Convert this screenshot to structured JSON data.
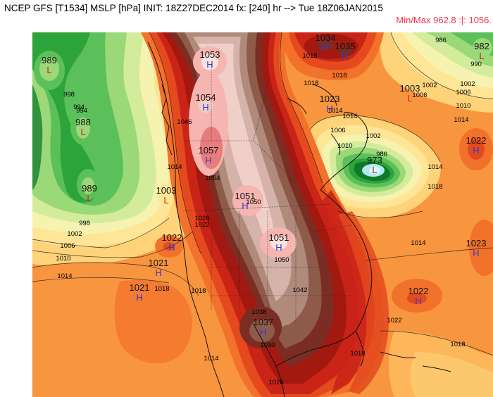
{
  "header": {
    "title": "NCEP GFS [T1534] MSLP [hPa] INIT: 18Z27DEC2014 fx: [240] hr --> Tue 18Z06JAN2015",
    "minmax": "Min/Max 962.8 :|: 1056."
  },
  "colors": {
    "background": "#ffffff",
    "minmax_text": "#e8364a",
    "high_letter": "#2a3cd6",
    "low_letter": "#d42020",
    "lows": [
      "#0e7a28",
      "#2ca43a",
      "#5cc05a",
      "#9bd878",
      "#d3ec9c",
      "#f6f2b0",
      "#ffe596"
    ],
    "mid": [
      "#fed37a",
      "#fdb65a",
      "#f8953f"
    ],
    "highs": [
      "#f2712b",
      "#e44a1e",
      "#c92417",
      "#a3180f",
      "#7c2d23",
      "#8e5b4b",
      "#b08a7b",
      "#d5b3ab",
      "#f0cfc8",
      "#f6b5b1",
      "#e87c7c"
    ],
    "deep_low": [
      "#b4e8f0",
      "#d8f6fa"
    ]
  },
  "pressure_centers": [
    {
      "type": "L",
      "value": "989",
      "id": "pac-north-low"
    },
    {
      "type": "L",
      "value": "988",
      "id": "pac-low-1"
    },
    {
      "type": "L",
      "value": "989",
      "id": "pac-low-2"
    },
    {
      "type": "L",
      "value": "1003",
      "id": "coast-low"
    },
    {
      "type": "H",
      "value": "1053",
      "id": "yukon-high"
    },
    {
      "type": "H",
      "value": "1054",
      "id": "bc-high"
    },
    {
      "type": "H",
      "value": "1057",
      "id": "alberta-high"
    },
    {
      "type": "H",
      "value": "1051",
      "id": "plains-high-1"
    },
    {
      "type": "H",
      "value": "1051",
      "id": "plains-high-2"
    },
    {
      "type": "H",
      "value": "1037",
      "id": "texas-high"
    },
    {
      "type": "H",
      "value": "1022",
      "id": "nevada-high"
    },
    {
      "type": "H",
      "value": "1021",
      "id": "calif-high"
    },
    {
      "type": "H",
      "value": "1021",
      "id": "pacific-sub-high"
    },
    {
      "type": "H",
      "value": "1034",
      "id": "arctic-high-1"
    },
    {
      "type": "H",
      "value": "1035",
      "id": "arctic-high-2"
    },
    {
      "type": "H",
      "value": "1023",
      "id": "nunavut-high"
    },
    {
      "type": "L",
      "value": "1003",
      "id": "greenland-low"
    },
    {
      "type": "L",
      "value": "982",
      "id": "atlantic-north-low"
    },
    {
      "type": "H",
      "value": "1022",
      "id": "atlantic-high-1"
    },
    {
      "type": "H",
      "value": "1023",
      "id": "atlantic-high-2"
    },
    {
      "type": "H",
      "value": "1022",
      "id": "bermuda-high"
    },
    {
      "type": "L",
      "value": "973",
      "id": "labrador-low"
    }
  ],
  "isobar_labels": [
    "998",
    "994",
    "994",
    "998",
    "1002",
    "1006",
    "1010",
    "1014",
    "1014",
    "1046",
    "1054",
    "1050",
    "1050",
    "1026",
    "1022",
    "1018",
    "1042",
    "1038",
    "1030",
    "1026",
    "1014",
    "1022",
    "1018",
    "1002",
    "1006",
    "1010",
    "1014",
    "1018",
    "1006",
    "1002",
    "986",
    "990",
    "1002",
    "1006",
    "1010",
    "1014",
    "1018",
    "1014",
    "1018",
    "1018",
    "1018",
    "1014",
    "1018",
    "1014",
    "986"
  ]
}
